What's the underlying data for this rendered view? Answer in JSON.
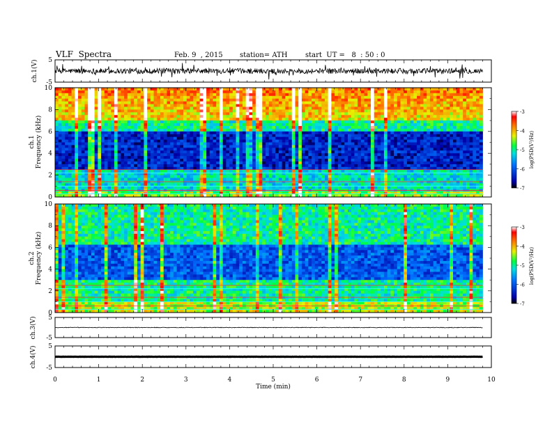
{
  "header": {
    "title": "VLF  Spectra",
    "date": "Feb. 9  , 2015",
    "station": "station= ATH",
    "start": "start  UT =   8  : 50 : 0"
  },
  "chart_data": [
    {
      "type": "line",
      "name": "ch1-waveform",
      "ylabel": "ch.1(V)",
      "yticks": [
        "5",
        "-5"
      ],
      "ylim": [
        -5,
        5
      ],
      "xlim": [
        0,
        10
      ],
      "data_extent_min": 9.8,
      "baseline": 0.0,
      "amplitude": 1.2
    },
    {
      "type": "heatmap",
      "name": "ch1-spectrogram",
      "ylabel": "ch.1\nFrequency  (kHz)",
      "yticks": [
        "0",
        "2",
        "4",
        "6",
        "8",
        "10"
      ],
      "ylim": [
        0,
        10
      ],
      "xlim": [
        0,
        10
      ],
      "colorbar": {
        "label": "log(PSD(V²/Hz)",
        "ticks": [
          "-3",
          "-4",
          "-5",
          "-6",
          "-7"
        ],
        "range": [
          -7,
          -3
        ]
      }
    },
    {
      "type": "heatmap",
      "name": "ch2-spectrogram",
      "ylabel": "ch.2\nFrequency  (kHz)",
      "yticks": [
        "0",
        "2",
        "4",
        "6",
        "8",
        "10"
      ],
      "ylim": [
        0,
        10
      ],
      "xlim": [
        0,
        10
      ],
      "colorbar": {
        "label": "log(PSD(V²/Hz)",
        "ticks": [
          "-3",
          "-4",
          "-5",
          "-6",
          "-7"
        ],
        "range": [
          -7,
          -3
        ]
      }
    },
    {
      "type": "line",
      "name": "ch3-waveform",
      "ylabel": "ch.3(V)",
      "yticks": [
        "5",
        "-5"
      ],
      "ylim": [
        -5,
        5
      ],
      "xlim": [
        0,
        10
      ],
      "baseline": 0.0,
      "amplitude": 0.15
    },
    {
      "type": "line",
      "name": "ch4-waveform",
      "ylabel": "ch.4(V)",
      "yticks": [
        "5",
        "-5"
      ],
      "ylim": [
        -5,
        5
      ],
      "xlim": [
        0,
        10
      ],
      "baseline": 0.0,
      "amplitude": 0.05
    }
  ],
  "xaxis": {
    "label": "Time  (min)",
    "ticks": [
      "0",
      "1",
      "2",
      "3",
      "4",
      "5",
      "6",
      "7",
      "8",
      "9",
      "10"
    ]
  }
}
